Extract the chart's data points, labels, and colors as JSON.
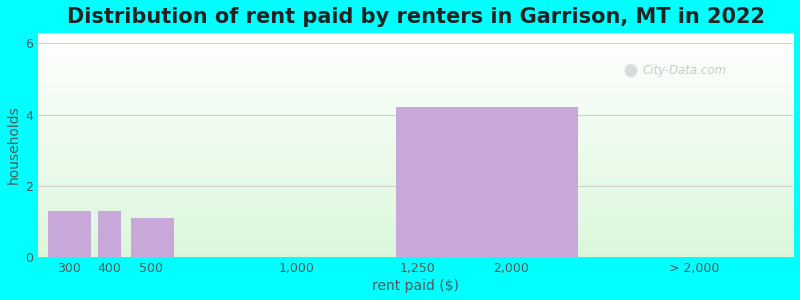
{
  "title": "Distribution of rent paid by renters in Garrison, MT in 2022",
  "xlabel": "rent paid ($)",
  "ylabel": "households",
  "bar_lefts": [
    0,
    1.5,
    2.5,
    6.5,
    10.5
  ],
  "bar_widths": [
    1.3,
    0.7,
    1.3,
    1.3,
    5.5
  ],
  "bar_heights": [
    1.3,
    1.3,
    1.1,
    0.0,
    4.2
  ],
  "bar_color": "#c8a8d8",
  "xtick_positions": [
    0.65,
    1.85,
    3.1,
    7.5,
    11.15,
    14.0,
    19.5
  ],
  "xtick_labels": [
    "300",
    "400",
    "500",
    "1,000",
    "1,250",
    "2,000",
    "> 2,000"
  ],
  "ytick_positions": [
    0,
    2,
    4,
    6
  ],
  "ytick_labels": [
    "0",
    "2",
    "4",
    "6"
  ],
  "ylim": [
    0,
    6.3
  ],
  "xlim": [
    -0.3,
    22.5
  ],
  "bg_color": "#00ffff",
  "grid_color": "#cccccc",
  "title_fontsize": 15,
  "axis_label_fontsize": 10,
  "tick_label_fontsize": 9,
  "watermark_text": "City-Data.com"
}
